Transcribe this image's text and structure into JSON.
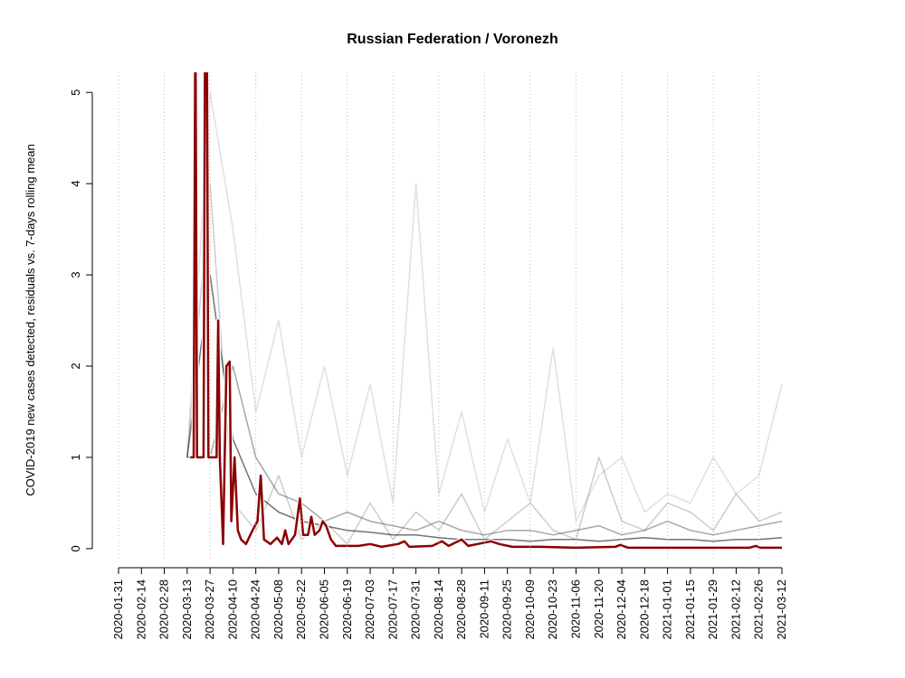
{
  "chart_data": {
    "type": "line",
    "title": "Russian Federation / Voronezh",
    "y_label": "COVID-2019 new cases detected, residuals vs. 7-days rolling mean",
    "x": [
      "2020-03-13",
      "2020-03-27",
      "2020-04-10",
      "2020-04-24",
      "2020-05-08",
      "2020-05-22",
      "2020-06-05",
      "2020-06-19",
      "2020-07-03",
      "2020-07-17",
      "2020-07-31",
      "2020-08-14",
      "2020-08-28",
      "2020-09-11",
      "2020-09-25",
      "2020-10-09",
      "2020-10-23",
      "2020-11-06",
      "2020-11-20",
      "2020-12-04",
      "2020-12-18",
      "2021-01-01",
      "2021-01-15",
      "2021-01-29",
      "2021-02-12",
      "2021-02-26",
      "2021-03-12"
    ],
    "series": [
      {
        "color": "rgba(0,0,0,0.12)",
        "values": [
          1,
          5,
          3.5,
          1.5,
          2.5,
          1.0,
          2.0,
          0.8,
          1.8,
          0.5,
          4.0,
          0.6,
          1.5,
          0.4,
          1.2,
          0.5,
          2.2,
          0.3,
          0.8,
          1.0,
          0.4,
          0.6,
          0.5,
          1.0,
          0.6,
          0.8,
          1.8
        ]
      },
      {
        "color": "rgba(0,0,0,0.2)",
        "values": [
          1,
          4,
          0.5,
          0.2,
          0.8,
          0.1,
          0.3,
          0.05,
          0.5,
          0.1,
          0.4,
          0.2,
          0.6,
          0.1,
          0.3,
          0.5,
          0.2,
          0.1,
          1.0,
          0.3,
          0.2,
          0.5,
          0.4,
          0.2,
          0.6,
          0.3,
          0.4
        ]
      },
      {
        "color": "rgba(0,0,0,0.35)",
        "values": [
          1,
          1,
          2,
          1.0,
          0.6,
          0.5,
          0.3,
          0.4,
          0.3,
          0.25,
          0.2,
          0.3,
          0.2,
          0.15,
          0.2,
          0.2,
          0.15,
          0.2,
          0.25,
          0.15,
          0.2,
          0.3,
          0.2,
          0.15,
          0.2,
          0.25,
          0.3
        ]
      },
      {
        "color": "rgba(0,0,0,0.55)",
        "values": [
          1,
          3,
          1.2,
          0.6,
          0.4,
          0.3,
          0.25,
          0.2,
          0.18,
          0.15,
          0.15,
          0.12,
          0.1,
          0.1,
          0.1,
          0.08,
          0.1,
          0.1,
          0.08,
          0.1,
          0.12,
          0.1,
          0.1,
          0.08,
          0.1,
          0.1,
          0.12
        ]
      },
      {
        "color": "#8b0000",
        "x": [
          "2020-03-15",
          "2020-03-17",
          "2020-03-18",
          "2020-03-19",
          "2020-03-23",
          "2020-03-24",
          "2020-03-25",
          "2020-03-26",
          "2020-03-31",
          "2020-04-01",
          "2020-04-02",
          "2020-04-04",
          "2020-04-06",
          "2020-04-08",
          "2020-04-09",
          "2020-04-11",
          "2020-04-13",
          "2020-04-15",
          "2020-04-18",
          "2020-04-22",
          "2020-04-25",
          "2020-04-27",
          "2020-04-29",
          "2020-05-03",
          "2020-05-07",
          "2020-05-10",
          "2020-05-12",
          "2020-05-14",
          "2020-05-18",
          "2020-05-21",
          "2020-05-23",
          "2020-05-26",
          "2020-05-28",
          "2020-05-30",
          "2020-06-02",
          "2020-06-04",
          "2020-06-06",
          "2020-06-09",
          "2020-06-12",
          "2020-06-26",
          "2020-07-03",
          "2020-07-10",
          "2020-07-20",
          "2020-07-24",
          "2020-07-27",
          "2020-08-10",
          "2020-08-16",
          "2020-08-20",
          "2020-08-28",
          "2020-09-01",
          "2020-09-15",
          "2020-09-20",
          "2020-09-28",
          "2020-10-15",
          "2020-11-06",
          "2020-11-30",
          "2020-12-03",
          "2020-12-08",
          "2021-01-10",
          "2021-02-20",
          "2021-02-24",
          "2021-02-27",
          "2021-03-12"
        ],
        "values": [
          1.0,
          1.0,
          6,
          1.0,
          1.0,
          6,
          6,
          1.0,
          1.0,
          2.5,
          1.0,
          0.05,
          2.0,
          2.05,
          0.3,
          1.0,
          0.2,
          0.1,
          0.05,
          0.2,
          0.3,
          0.8,
          0.1,
          0.05,
          0.12,
          0.05,
          0.2,
          0.05,
          0.15,
          0.55,
          0.15,
          0.15,
          0.35,
          0.15,
          0.2,
          0.3,
          0.25,
          0.1,
          0.03,
          0.03,
          0.05,
          0.02,
          0.05,
          0.08,
          0.02,
          0.03,
          0.08,
          0.03,
          0.1,
          0.03,
          0.08,
          0.05,
          0.02,
          0.02,
          0.01,
          0.02,
          0.04,
          0.01,
          0.01,
          0.01,
          0.03,
          0.01,
          0.01
        ]
      }
    ],
    "xlim": [
      "2020-01-31",
      "2021-03-12"
    ],
    "xticks": [
      "2020-01-31",
      "2020-02-14",
      "2020-02-28",
      "2020-03-13",
      "2020-03-27",
      "2020-04-10",
      "2020-04-24",
      "2020-05-08",
      "2020-05-22",
      "2020-06-05",
      "2020-06-19",
      "2020-07-03",
      "2020-07-17",
      "2020-07-31",
      "2020-08-14",
      "2020-08-28",
      "2020-09-11",
      "2020-09-25",
      "2020-10-09",
      "2020-10-23",
      "2020-11-06",
      "2020-11-20",
      "2020-12-04",
      "2020-12-18",
      "2021-01-01",
      "2021-01-15",
      "2021-01-29",
      "2021-02-12",
      "2021-02-26",
      "2021-03-12"
    ],
    "ylim": [
      -0.13,
      5.22
    ],
    "yticks": [
      0,
      1,
      2,
      3,
      4,
      5
    ],
    "grid": true
  }
}
